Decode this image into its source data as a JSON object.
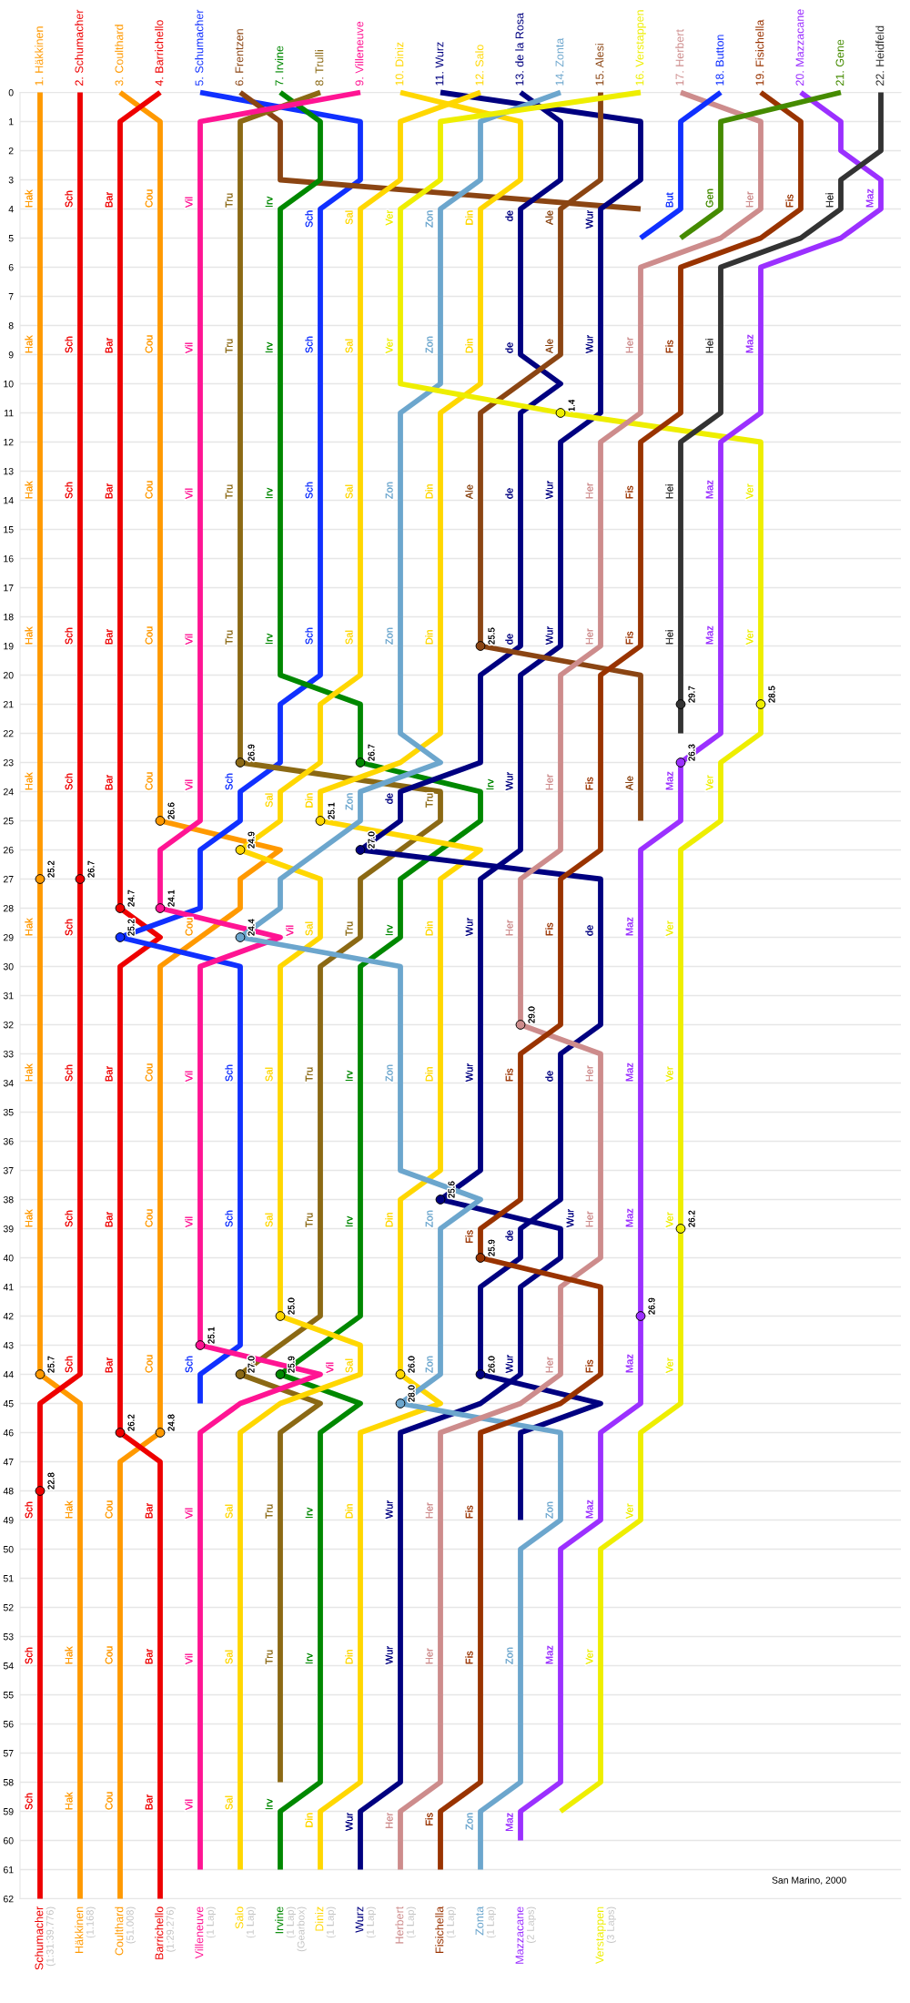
{
  "chart_data": {
    "type": "line",
    "categories": [
      "Schumacher\n(1:31:39.776)",
      "Häkkinen\n(1.168)",
      "Coulthard\n(51.008)",
      "Barrichello\n(1:29.276)",
      "Villeneuve\n(1 Lap)",
      "Salo\n(1 Lap)",
      "Irvine\n(1 Lap)\n(Gearbox)",
      "Diniz\n(1 Lap)",
      "Wurz\n(1 Lap)",
      "Herbert\n(1 Lap)",
      "Fisichella\n(1 Lap)",
      "Zonta\n(1 Lap)",
      "Mazzacane\n(2 Laps)",
      null,
      "Verstappen\n(3 Laps)",
      null,
      null,
      null,
      null,
      null,
      null,
      null
    ],
    "ylim": [
      62,
      0
    ],
    "x2lim": [
      0.5,
      22.5
    ],
    "yticks": [
      0,
      1,
      2,
      3,
      4,
      5,
      6,
      7,
      8,
      9,
      10,
      11,
      12,
      13,
      14,
      15,
      16,
      17,
      18,
      19,
      20,
      21,
      22,
      23,
      24,
      25,
      26,
      27,
      28,
      29,
      30,
      31,
      32,
      33,
      34,
      35,
      36,
      37,
      38,
      39,
      40,
      41,
      42,
      43,
      44,
      45,
      46,
      47,
      48,
      49,
      50,
      51,
      52,
      53,
      54,
      55,
      56,
      57,
      58,
      59,
      60,
      61,
      62
    ],
    "x2ticks": [
      {
        "value": 1,
        "label": "1. Häkkinen"
      },
      {
        "value": 2,
        "label": "2. Schumacher"
      },
      {
        "value": 3,
        "label": "3. Coulthard"
      },
      {
        "value": 4,
        "label": "4. Barrichello"
      },
      {
        "value": 5,
        "label": "5. Schumacher"
      },
      {
        "value": 6,
        "label": "6. Frentzen"
      },
      {
        "value": 7,
        "label": "7. Irvine"
      },
      {
        "value": 8,
        "label": "8. Trulli"
      },
      {
        "value": 9,
        "label": "9. Villeneuve"
      },
      {
        "value": 10,
        "label": "10. Diniz"
      },
      {
        "value": 11,
        "label": "11. Wurz"
      },
      {
        "value": 12,
        "label": "12. Salo"
      },
      {
        "value": 13,
        "label": "13. de la Rosa"
      },
      {
        "value": 14,
        "label": "14. Zonta"
      },
      {
        "value": 15,
        "label": "15. Alesi"
      },
      {
        "value": 16,
        "label": "16. Verstappen"
      },
      {
        "value": 17,
        "label": "17. Herbert"
      },
      {
        "value": 18,
        "label": "18. Button"
      },
      {
        "value": 19,
        "label": "19. Fisichella"
      },
      {
        "value": 20,
        "label": "20. Mazzacane"
      },
      {
        "value": 21,
        "label": "21. Gene"
      },
      {
        "value": 22,
        "label": "22. Heidfeld"
      }
    ],
    "grid": "y",
    "annotations": [
      "25.2",
      "25.7",
      "26.7",
      "22.8",
      "24.7",
      "26.2",
      "26.6",
      "24.8",
      "24.1",
      "25.1",
      "25.2",
      "26.9",
      "27.0",
      "26.7",
      "25.9",
      "24.9",
      "25.0",
      "25.1",
      "26.0",
      "24.4",
      "28.0",
      "27.0",
      "26.0",
      "25.6",
      "25.5",
      "29.0",
      "25.9",
      "29.7",
      "26.3",
      "26.9",
      "1.4",
      "28.5",
      "26.2",
      "San Marino, 2000"
    ],
    "series": [
      {
        "axis": "x2",
        "color": "#ff9900",
        "x": [
          1,
          1,
          1,
          1,
          1,
          1,
          1,
          1,
          1,
          1,
          2,
          2,
          2,
          2,
          2
        ],
        "values": [
          0,
          4,
          9,
          14,
          19,
          24,
          29,
          34,
          39,
          44,
          45,
          49,
          54,
          59,
          62
        ],
        "value_labels": [
          null,
          "Hak",
          "Hak",
          "Hak",
          "Hak",
          "Hak",
          "Hak",
          "Hak",
          "Hak",
          null,
          null,
          "Hak",
          "Hak",
          "Hak",
          null
        ]
      },
      {
        "axis": "x2",
        "color": "#ee0000",
        "x": [
          2,
          2,
          2,
          2,
          2,
          2,
          2,
          2,
          2,
          2,
          1,
          1,
          1,
          1,
          1
        ],
        "values": [
          0,
          4,
          9,
          14,
          19,
          24,
          29,
          34,
          39,
          44,
          45,
          49,
          54,
          59,
          62
        ],
        "value_labels": [
          null,
          "Sch",
          "Sch",
          "Sch",
          "Sch",
          "Sch",
          "Sch",
          "Sch",
          "Sch",
          "Sch",
          null,
          "Sch",
          "Sch",
          "Sch",
          null
        ]
      },
      {
        "axis": "x2",
        "color": "#ff9900",
        "x": [
          3,
          4,
          4,
          4,
          4,
          4,
          4,
          4,
          7,
          6,
          6,
          5,
          4,
          4,
          4,
          4,
          4,
          3,
          3,
          3,
          3,
          3
        ],
        "values": [
          0,
          1,
          4,
          9,
          14,
          19,
          24,
          25,
          26,
          27,
          28,
          29,
          30,
          34,
          39,
          44,
          46,
          47,
          49,
          54,
          59,
          62
        ],
        "value_labels": [
          null,
          null,
          "Cou",
          "Cou",
          "Cou",
          "Cou",
          "Cou",
          null,
          null,
          null,
          null,
          "Cou",
          null,
          "Cou",
          "Cou",
          "Cou",
          null,
          null,
          "Cou",
          "Cou",
          "Cou",
          null
        ]
      },
      {
        "axis": "x2",
        "color": "#ee0000",
        "x": [
          4,
          3,
          3,
          3,
          3,
          3,
          3,
          3,
          4,
          3,
          3,
          3,
          3,
          3,
          4,
          4,
          4,
          4,
          4
        ],
        "values": [
          0,
          1,
          4,
          9,
          14,
          19,
          24,
          28,
          29,
          30,
          34,
          39,
          44,
          46,
          47,
          49,
          54,
          59,
          62
        ],
        "value_labels": [
          null,
          null,
          "Bar",
          "Bar",
          "Bar",
          "Bar",
          "Bar",
          null,
          null,
          null,
          "Bar",
          "Bar",
          "Bar",
          null,
          null,
          "Bar",
          "Bar",
          "Bar",
          null
        ]
      },
      {
        "axis": "x2",
        "color": "#1030ff",
        "x": [
          5,
          9,
          9,
          8,
          8,
          8,
          8,
          8,
          7,
          7,
          6,
          6,
          5,
          5,
          3,
          6,
          6,
          6,
          6,
          5,
          5
        ],
        "values": [
          0,
          1,
          3,
          4,
          9,
          14,
          19,
          20,
          21,
          23,
          24,
          25,
          26,
          28,
          29,
          30,
          34,
          39,
          43,
          44,
          45
        ],
        "value_labels": [
          null,
          null,
          null,
          "Sch",
          "Sch",
          "Sch",
          "Sch",
          null,
          null,
          null,
          "Sch",
          null,
          null,
          null,
          null,
          null,
          "Sch",
          "Sch",
          null,
          "Sch",
          null
        ]
      },
      {
        "axis": "x2",
        "color": "#8b4513",
        "x": [
          6,
          7,
          7,
          16
        ],
        "values": [
          0,
          1,
          3,
          4
        ]
      },
      {
        "axis": "x2",
        "color": "#008800",
        "x": [
          7,
          8,
          8,
          7,
          7,
          7,
          7,
          7,
          9,
          9,
          12,
          12,
          11,
          10,
          10,
          9,
          9,
          9,
          9,
          8,
          7,
          9,
          8,
          8,
          8,
          8,
          7,
          7
        ],
        "values": [
          0,
          1,
          3,
          4,
          9,
          14,
          19,
          20,
          21,
          23,
          24,
          25,
          26,
          27,
          29,
          30,
          34,
          39,
          42,
          43,
          44,
          45,
          46,
          49,
          54,
          58,
          59,
          61
        ],
        "value_labels": [
          null,
          null,
          null,
          "Irv",
          "Irv",
          "Irv",
          "Irv",
          null,
          null,
          null,
          "Irv",
          null,
          null,
          null,
          "Irv",
          null,
          "Irv",
          "Irv",
          null,
          null,
          null,
          null,
          null,
          "Irv",
          "Irv",
          null,
          "Irv",
          null
        ]
      },
      {
        "axis": "x2",
        "color": "#8b6914",
        "x": [
          8,
          6,
          6,
          6,
          6,
          6,
          6,
          11,
          11,
          10,
          9,
          9,
          8,
          8,
          8,
          8,
          7,
          6,
          8,
          7,
          7,
          7,
          7
        ],
        "values": [
          0,
          1,
          4,
          9,
          14,
          19,
          23,
          24,
          25,
          26,
          27,
          29,
          30,
          34,
          39,
          42,
          43,
          44,
          45,
          46,
          49,
          54,
          58
        ],
        "value_labels": [
          null,
          null,
          "Tru",
          "Tru",
          "Tru",
          "Tru",
          null,
          "Tru",
          null,
          null,
          null,
          "Tru",
          null,
          "Tru",
          "Tru",
          null,
          null,
          null,
          null,
          null,
          "Tru",
          "Tru",
          null
        ]
      },
      {
        "axis": "x2",
        "color": "#ff1493",
        "x": [
          9,
          5,
          5,
          5,
          5,
          5,
          5,
          5,
          4,
          4,
          7,
          5,
          5,
          5,
          5,
          8,
          6,
          5,
          5,
          5,
          5,
          5
        ],
        "values": [
          0,
          1,
          4,
          9,
          14,
          19,
          24,
          25,
          26,
          28,
          29,
          30,
          34,
          39,
          43,
          44,
          45,
          46,
          49,
          54,
          59,
          61
        ],
        "value_labels": [
          null,
          null,
          "Vil",
          "Vil",
          "Vil",
          "Vil",
          "Vil",
          null,
          null,
          null,
          "Vil",
          null,
          "Vil",
          "Vil",
          null,
          "Vil",
          null,
          null,
          "Vil",
          "Vil",
          "Vil",
          null
        ]
      },
      {
        "axis": "x2",
        "color": "#ffd700",
        "x": [
          10,
          13,
          13,
          12,
          12,
          12,
          11,
          11,
          11,
          11,
          10,
          8,
          8,
          12,
          11,
          11,
          11,
          11,
          10,
          10,
          10,
          11,
          9,
          9,
          9,
          9,
          8,
          8
        ],
        "values": [
          0,
          1,
          3,
          4,
          9,
          10,
          11,
          14,
          19,
          22,
          23,
          24,
          25,
          26,
          27,
          29,
          34,
          37,
          38,
          39,
          44,
          45,
          46,
          49,
          54,
          58,
          59,
          61
        ],
        "value_labels": [
          null,
          null,
          null,
          "Din",
          "Din",
          null,
          null,
          "Din",
          "Din",
          null,
          null,
          "Din",
          null,
          null,
          null,
          "Din",
          "Din",
          null,
          null,
          "Din",
          null,
          null,
          null,
          "Din",
          "Din",
          null,
          "Din",
          null
        ]
      },
      {
        "axis": "x2",
        "color": "#000080",
        "x": [
          11,
          16,
          16,
          15,
          15,
          15,
          14,
          14,
          14,
          13,
          13,
          13,
          12,
          12,
          12,
          12,
          11,
          14,
          14,
          13,
          13,
          12,
          10,
          10,
          10,
          10,
          9,
          9
        ],
        "values": [
          0,
          1,
          3,
          4,
          9,
          11,
          12,
          14,
          19,
          20,
          24,
          26,
          27,
          29,
          34,
          37,
          38,
          39,
          40,
          41,
          44,
          45,
          46,
          49,
          54,
          58,
          59,
          61
        ],
        "value_labels": [
          null,
          null,
          null,
          "Wur",
          "Wur",
          null,
          null,
          "Wur",
          "Wur",
          null,
          "Wur",
          null,
          null,
          "Wur",
          "Wur",
          null,
          null,
          "Wur",
          null,
          null,
          "Wur",
          null,
          null,
          "Wur",
          "Wur",
          null,
          "Wur",
          null
        ]
      },
      {
        "axis": "x2",
        "color": "#ffd700",
        "x": [
          12,
          10,
          10,
          9,
          9,
          9,
          9,
          9,
          8,
          8,
          7,
          7,
          6,
          8,
          8,
          7,
          7,
          7,
          7,
          9,
          9,
          7,
          6,
          6,
          6,
          6,
          6
        ],
        "values": [
          0,
          1,
          3,
          4,
          9,
          14,
          19,
          20,
          21,
          23,
          24,
          25,
          26,
          27,
          29,
          30,
          34,
          39,
          42,
          43,
          44,
          45,
          46,
          49,
          54,
          59,
          61
        ],
        "value_labels": [
          null,
          null,
          null,
          "Sal",
          "Sal",
          "Sal",
          "Sal",
          null,
          null,
          null,
          "Sal",
          null,
          null,
          null,
          "Sal",
          null,
          "Sal",
          "Sal",
          null,
          null,
          "Sal",
          null,
          null,
          "Sal",
          "Sal",
          "Sal",
          null
        ]
      },
      {
        "axis": "x2",
        "color": "#000080",
        "x": [
          13,
          14,
          14,
          13,
          13,
          14,
          13,
          13,
          13,
          12,
          12,
          10,
          10,
          9,
          15,
          15,
          15,
          14,
          14,
          14,
          13,
          13,
          12,
          12,
          15,
          13,
          13
        ],
        "values": [
          0,
          1,
          3,
          4,
          9,
          10,
          11,
          14,
          19,
          20,
          23,
          24,
          25,
          26,
          27,
          29,
          32,
          33,
          34,
          38,
          39,
          40,
          41,
          44,
          45,
          46,
          49
        ],
        "value_labels": [
          null,
          null,
          null,
          "de",
          "de",
          null,
          null,
          "de",
          "de",
          null,
          null,
          "de",
          null,
          null,
          null,
          "de",
          null,
          null,
          "de",
          null,
          "de",
          null,
          null,
          null,
          null,
          null,
          null
        ]
      },
      {
        "axis": "x2",
        "color": "#6ca6cd",
        "x": [
          14,
          12,
          12,
          11,
          11,
          11,
          10,
          10,
          10,
          10,
          11,
          9,
          9,
          8,
          7,
          7,
          6,
          10,
          10,
          10,
          12,
          11,
          11,
          10,
          14,
          14,
          13,
          13,
          13,
          12,
          12
        ],
        "values": [
          0,
          1,
          3,
          4,
          9,
          10,
          11,
          14,
          19,
          22,
          23,
          24,
          25,
          26,
          27,
          28,
          29,
          30,
          34,
          37,
          38,
          39,
          44,
          45,
          46,
          49,
          50,
          54,
          58,
          59,
          61
        ],
        "value_labels": [
          null,
          null,
          null,
          "Zon",
          "Zon",
          null,
          null,
          "Zon",
          "Zon",
          null,
          null,
          "Zon",
          null,
          null,
          null,
          null,
          null,
          null,
          "Zon",
          null,
          null,
          "Zon",
          "Zon",
          null,
          null,
          "Zon",
          null,
          "Zon",
          null,
          "Zon",
          null
        ]
      },
      {
        "axis": "x2",
        "color": "#8b4513",
        "x": [
          15,
          15,
          14,
          14,
          13,
          12,
          12,
          12,
          16,
          16,
          16
        ],
        "values": [
          0,
          3,
          4,
          9,
          10,
          11,
          14,
          19,
          20,
          24,
          25
        ],
        "value_labels": [
          null,
          null,
          "Ale",
          "Ale",
          null,
          null,
          "Ale",
          null,
          null,
          "Ale",
          null
        ]
      },
      {
        "axis": "x2",
        "color": "#eeee00",
        "x": [
          16,
          11,
          11,
          10,
          10,
          10,
          14,
          19,
          19,
          19,
          19,
          18,
          18,
          18,
          17,
          17,
          17,
          17,
          17,
          17,
          16,
          16,
          15,
          15,
          15,
          14
        ],
        "values": [
          0,
          1,
          3,
          4,
          9,
          10,
          11,
          12,
          14,
          19,
          22,
          23,
          24,
          25,
          26,
          29,
          34,
          39,
          44,
          45,
          46,
          49,
          50,
          54,
          58,
          59
        ],
        "value_labels": [
          null,
          null,
          null,
          "Ver",
          "Ver",
          null,
          null,
          null,
          "Ver",
          "Ver",
          null,
          null,
          "Ver",
          null,
          null,
          "Ver",
          "Ver",
          "Ver",
          "Ver",
          null,
          null,
          "Ver",
          null,
          "Ver",
          null,
          null
        ]
      },
      {
        "axis": "x2",
        "color": "#cd8c8c",
        "x": [
          17,
          19,
          19,
          18,
          16,
          16,
          16,
          15,
          15,
          15,
          14,
          14,
          14,
          13,
          13,
          13,
          15,
          15,
          15,
          15,
          14,
          14,
          13,
          11,
          11,
          11,
          11,
          10,
          10
        ],
        "values": [
          0,
          1,
          4,
          5,
          6,
          9,
          11,
          12,
          14,
          19,
          20,
          24,
          26,
          27,
          29,
          32,
          33,
          34,
          39,
          40,
          41,
          44,
          45,
          46,
          49,
          54,
          58,
          59,
          61
        ],
        "value_labels": [
          null,
          null,
          "Her",
          null,
          null,
          "Her",
          null,
          null,
          "Her",
          "Her",
          null,
          "Her",
          null,
          null,
          "Her",
          null,
          null,
          "Her",
          "Her",
          null,
          null,
          "Her",
          null,
          null,
          "Her",
          "Her",
          null,
          "Her",
          null
        ]
      },
      {
        "axis": "x2",
        "color": "#1030ff",
        "x": [
          18,
          17,
          17,
          16
        ],
        "values": [
          0,
          1,
          4,
          5
        ],
        "value_labels": [
          null,
          null,
          "But",
          null
        ]
      },
      {
        "axis": "x2",
        "color": "#993300",
        "x": [
          19,
          20,
          20,
          19,
          17,
          17,
          17,
          16,
          16,
          16,
          15,
          15,
          15,
          14,
          14,
          14,
          13,
          13,
          13,
          12,
          12,
          15,
          15,
          14,
          12,
          12,
          12,
          12,
          11,
          11
        ],
        "values": [
          0,
          1,
          4,
          5,
          6,
          9,
          11,
          12,
          14,
          19,
          20,
          24,
          26,
          27,
          29,
          32,
          33,
          34,
          38,
          39,
          40,
          41,
          44,
          45,
          46,
          49,
          54,
          58,
          59,
          61
        ],
        "value_labels": [
          null,
          null,
          "Fis",
          null,
          null,
          "Fis",
          null,
          null,
          "Fis",
          "Fis",
          null,
          "Fis",
          null,
          null,
          "Fis",
          null,
          null,
          "Fis",
          null,
          "Fis",
          null,
          null,
          "Fis",
          null,
          null,
          "Fis",
          "Fis",
          null,
          "Fis",
          null
        ]
      },
      {
        "axis": "x2",
        "color": "#9b30ff",
        "x": [
          20,
          21,
          21,
          22,
          22,
          21,
          19,
          19,
          19,
          18,
          18,
          18,
          18,
          17,
          17,
          17,
          16,
          16,
          16,
          16,
          16,
          16,
          15,
          15,
          14,
          14,
          14,
          13,
          13
        ],
        "values": [
          0,
          1,
          2,
          3,
          4,
          5,
          6,
          9,
          11,
          12,
          14,
          19,
          22,
          23,
          24,
          25,
          26,
          29,
          34,
          39,
          44,
          45,
          46,
          49,
          50,
          54,
          58,
          59,
          60
        ],
        "value_labels": [
          null,
          null,
          null,
          null,
          "Maz",
          null,
          null,
          "Maz",
          null,
          null,
          "Maz",
          "Maz",
          null,
          null,
          "Maz",
          null,
          null,
          "Maz",
          "Maz",
          "Maz",
          "Maz",
          null,
          null,
          "Maz",
          null,
          "Maz",
          null,
          "Maz",
          null
        ]
      },
      {
        "axis": "x2",
        "color": "#458b00",
        "x": [
          21,
          18,
          18,
          17
        ],
        "values": [
          0,
          1,
          4,
          5
        ],
        "value_labels": [
          null,
          null,
          "Gen",
          null
        ]
      },
      {
        "axis": "x2",
        "color": "#333333",
        "x": [
          22,
          22,
          21,
          21,
          20,
          18,
          18,
          18,
          17,
          17,
          17,
          17
        ],
        "values": [
          0,
          2,
          3,
          4,
          5,
          6,
          9,
          11,
          12,
          14,
          19,
          22
        ],
        "value_labels": [
          null,
          null,
          null,
          "Hei",
          null,
          null,
          "Hei",
          null,
          null,
          "Hei",
          "Hei",
          null
        ]
      },
      {
        "axis": "x2",
        "type": "scatter",
        "marker": "circle",
        "x": [
          1,
          1,
          2,
          1,
          3,
          3,
          4,
          4,
          4,
          5,
          3,
          6,
          6,
          9,
          7,
          6,
          7,
          8,
          10,
          6,
          10,
          9,
          12,
          11,
          12,
          13,
          12,
          17,
          17,
          16,
          14,
          19,
          17
        ],
        "values": [
          27,
          44,
          27,
          48,
          28,
          46,
          25,
          46,
          28,
          43,
          29,
          23,
          44,
          23,
          44,
          26,
          42,
          25,
          44,
          29,
          45,
          26,
          44,
          38,
          19,
          32,
          40,
          21,
          23,
          42,
          11,
          21,
          39
        ],
        "colors": [
          "#ff9900",
          "#ff9900",
          "#ee0000",
          "#ee0000",
          "#ee0000",
          "#ee0000",
          "#ff9900",
          "#ff9900",
          "#ff1493",
          "#ff1493",
          "#1030ff",
          "#8b6914",
          "#8b6914",
          "#008800",
          "#008800",
          "#ffd700",
          "#ffd700",
          "#ffd700",
          "#ffd700",
          "#6ca6cd",
          "#6ca6cd",
          "#000080",
          "#000080",
          "#000080",
          "#8b4513",
          "#cd8c8c",
          "#993300",
          "#333333",
          "#9b30ff",
          "#9b30ff",
          "#eeee00",
          "#eeee00",
          "#eeee00"
        ]
      }
    ]
  }
}
